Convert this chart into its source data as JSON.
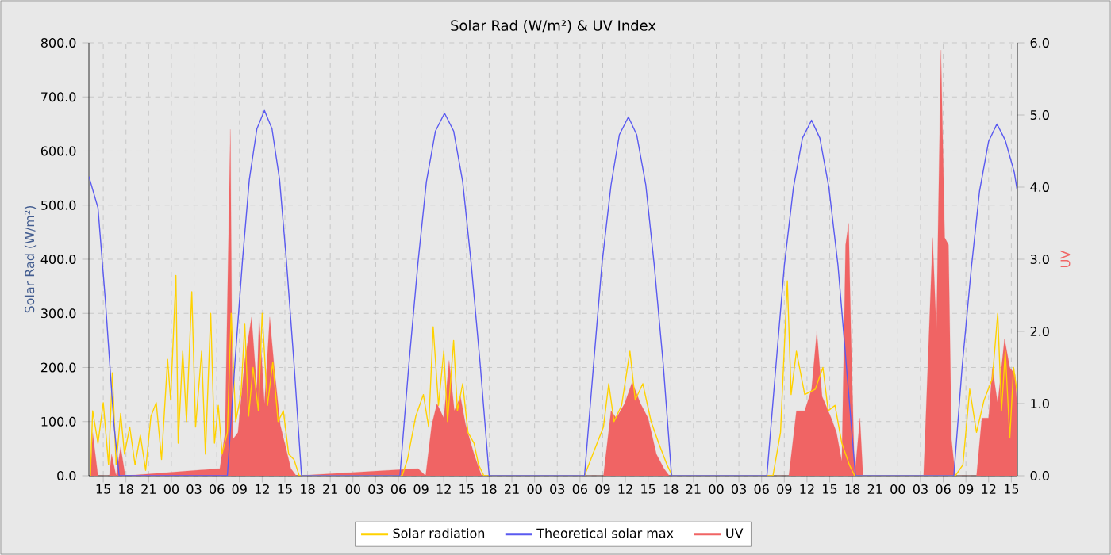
{
  "chart_data": {
    "type": "area",
    "title": "Solar Rad (W/m²) & UV Index",
    "ylabel": "Solar Rad (W/m²)",
    "y2label": "UV",
    "xlim": [
      13.1,
      135.8
    ],
    "ylim": [
      0,
      800
    ],
    "y2lim": [
      0,
      6
    ],
    "xticks": [
      {
        "value": 15,
        "label": "15"
      },
      {
        "value": 18,
        "label": "18"
      },
      {
        "value": 21,
        "label": "21"
      },
      {
        "value": 24,
        "label": "00"
      },
      {
        "value": 27,
        "label": "03"
      },
      {
        "value": 30,
        "label": "06"
      },
      {
        "value": 33,
        "label": "09"
      },
      {
        "value": 36,
        "label": "12"
      },
      {
        "value": 39,
        "label": "15"
      },
      {
        "value": 42,
        "label": "18"
      },
      {
        "value": 45,
        "label": "21"
      },
      {
        "value": 48,
        "label": "00"
      },
      {
        "value": 51,
        "label": "03"
      },
      {
        "value": 54,
        "label": "06"
      },
      {
        "value": 57,
        "label": "09"
      },
      {
        "value": 60,
        "label": "12"
      },
      {
        "value": 63,
        "label": "15"
      },
      {
        "value": 66,
        "label": "18"
      },
      {
        "value": 69,
        "label": "21"
      },
      {
        "value": 72,
        "label": "00"
      },
      {
        "value": 75,
        "label": "03"
      },
      {
        "value": 78,
        "label": "06"
      },
      {
        "value": 81,
        "label": "09"
      },
      {
        "value": 84,
        "label": "12"
      },
      {
        "value": 87,
        "label": "15"
      },
      {
        "value": 90,
        "label": "18"
      },
      {
        "value": 93,
        "label": "21"
      },
      {
        "value": 96,
        "label": "00"
      },
      {
        "value": 99,
        "label": "03"
      },
      {
        "value": 102,
        "label": "06"
      },
      {
        "value": 105,
        "label": "09"
      },
      {
        "value": 108,
        "label": "12"
      },
      {
        "value": 111,
        "label": "15"
      },
      {
        "value": 114,
        "label": "18"
      },
      {
        "value": 117,
        "label": "21"
      },
      {
        "value": 120,
        "label": "00"
      },
      {
        "value": 123,
        "label": "03"
      },
      {
        "value": 126,
        "label": "06"
      },
      {
        "value": 129,
        "label": "09"
      },
      {
        "value": 132,
        "label": "12"
      },
      {
        "value": 135,
        "label": "15"
      }
    ],
    "yticks": [
      {
        "value": 0,
        "label": "0.0"
      },
      {
        "value": 100,
        "label": "100.0"
      },
      {
        "value": 200,
        "label": "200.0"
      },
      {
        "value": 300,
        "label": "300.0"
      },
      {
        "value": 400,
        "label": "400.0"
      },
      {
        "value": 500,
        "label": "500.0"
      },
      {
        "value": 600,
        "label": "600.0"
      },
      {
        "value": 700,
        "label": "700.0"
      },
      {
        "value": 800,
        "label": "800.0"
      }
    ],
    "y2ticks": [
      {
        "value": 0,
        "label": "0.0"
      },
      {
        "value": 1,
        "label": "1.0"
      },
      {
        "value": 2,
        "label": "2.0"
      },
      {
        "value": 3,
        "label": "3.0"
      },
      {
        "value": 4,
        "label": "4.0"
      },
      {
        "value": 5,
        "label": "5.0"
      },
      {
        "value": 6,
        "label": "6.0"
      }
    ],
    "grid": true,
    "legend": "bottom",
    "series": [
      {
        "name": "Solar radiation",
        "type": "line",
        "color": "#ffd200",
        "x": [
          13.3,
          13.6,
          14.3,
          15.0,
          15.7,
          16.2,
          16.7,
          17.3,
          17.8,
          18.5,
          19.2,
          19.9,
          20.6,
          21.3,
          22.0,
          22.7,
          23.5,
          23.9,
          24.6,
          24.9,
          25.5,
          26.0,
          26.7,
          27.2,
          28.0,
          28.5,
          29.2,
          29.7,
          30.2,
          30.7,
          31.4,
          31.9,
          32.5,
          33.2,
          33.7,
          34.2,
          34.8,
          35.5,
          36.0,
          36.7,
          37.4,
          38.1,
          38.8,
          39.5,
          40.2,
          40.9,
          54.5,
          55.2,
          56.3,
          57.3,
          58.0,
          58.6,
          59.3,
          60.0,
          60.5,
          61.3,
          61.8,
          62.5,
          63.2,
          64.0,
          64.6,
          65.3,
          78.6,
          79.7,
          81.1,
          81.8,
          82.5,
          83.5,
          84.6,
          85.3,
          86.3,
          87.4,
          88.4,
          89.5,
          90.2,
          103.5,
          104.5,
          105.4,
          105.9,
          106.6,
          107.7,
          109.1,
          110.1,
          110.8,
          111.7,
          112.6,
          113.6,
          114.3,
          127.6,
          128.6,
          129.5,
          130.4,
          131.4,
          132.5,
          133.2,
          133.7,
          134.2,
          134.8,
          135.3,
          135.8
        ],
        "values": [
          0,
          120,
          60,
          135,
          20,
          190,
          20,
          115,
          40,
          90,
          20,
          75,
          10,
          110,
          135,
          30,
          215,
          140,
          370,
          60,
          230,
          100,
          340,
          90,
          230,
          40,
          300,
          60,
          130,
          40,
          80,
          300,
          100,
          150,
          280,
          110,
          200,
          120,
          300,
          130,
          210,
          100,
          120,
          40,
          30,
          0,
          0,
          30,
          110,
          150,
          90,
          275,
          130,
          230,
          100,
          250,
          120,
          170,
          80,
          60,
          20,
          0,
          0,
          40,
          90,
          170,
          100,
          130,
          230,
          140,
          170,
          100,
          60,
          20,
          0,
          0,
          80,
          360,
          150,
          230,
          150,
          160,
          200,
          120,
          130,
          60,
          20,
          0,
          0,
          20,
          160,
          80,
          140,
          180,
          300,
          120,
          230,
          70,
          200,
          150
        ]
      },
      {
        "name": "Theoretical solar max",
        "type": "line",
        "color": "#5a5af0",
        "x": [
          13.1,
          14.3,
          15.3,
          16.4,
          17.1,
          31.4,
          32.4,
          33.4,
          34.3,
          35.3,
          36.3,
          37.3,
          38.3,
          39.2,
          40.2,
          41.2,
          54.2,
          55.4,
          56.6,
          57.7,
          58.9,
          60.1,
          61.3,
          62.5,
          63.6,
          64.8,
          66.0,
          78.6,
          79.8,
          80.9,
          82.1,
          83.2,
          84.4,
          85.5,
          86.7,
          87.8,
          89.0,
          90.1,
          102.7,
          103.9,
          105.0,
          106.2,
          107.4,
          108.6,
          109.7,
          110.9,
          112.1,
          113.2,
          114.4,
          127.4,
          128.5,
          129.7,
          130.8,
          132.0,
          133.1,
          134.2,
          135.4,
          135.8
        ],
        "values": [
          553,
          495,
          320,
          97,
          0,
          0,
          209,
          398,
          547,
          641,
          675,
          641,
          547,
          398,
          209,
          0,
          0,
          208,
          395,
          543,
          637,
          670,
          637,
          543,
          395,
          208,
          0,
          0,
          206,
          391,
          537,
          630,
          663,
          630,
          537,
          391,
          206,
          0,
          0,
          204,
          388,
          532,
          624,
          657,
          624,
          532,
          388,
          204,
          0,
          0,
          201,
          382,
          526,
          618,
          650,
          620,
          560,
          525
        ]
      },
      {
        "name": "UV",
        "axis": "y2",
        "color": "#f06464",
        "x": [
          13.3,
          13.6,
          14.3,
          15.8,
          16.1,
          16.7,
          17.3,
          17.9,
          30.4,
          31.1,
          31.8,
          32.1,
          32.8,
          33.7,
          34.6,
          35.3,
          35.6,
          36.3,
          37.0,
          37.6,
          38.4,
          39.1,
          39.8,
          40.5,
          56.6,
          57.6,
          58.4,
          59.1,
          60.0,
          60.7,
          61.4,
          62.2,
          62.9,
          64.0,
          65.0,
          81.1,
          82.1,
          82.8,
          83.9,
          84.9,
          86.0,
          87.0,
          88.1,
          89.1,
          89.8,
          105.6,
          106.6,
          107.7,
          108.6,
          109.3,
          110.0,
          111.2,
          111.9,
          112.6,
          113.1,
          113.5,
          113.8,
          114.3,
          115.0,
          115.4,
          123.4,
          123.7,
          124.6,
          125.1,
          125.7,
          126.2,
          126.7,
          127.1,
          127.6,
          130.4,
          131.1,
          132.0,
          132.5,
          133.2,
          134.1,
          134.8,
          135.5,
          135.8
        ],
        "values": [
          0,
          0.6,
          0,
          0,
          0.3,
          0,
          0.4,
          0,
          0.1,
          0.6,
          4.8,
          0.5,
          0.6,
          1.6,
          2.2,
          1.2,
          2.2,
          1.0,
          2.2,
          1.5,
          0.7,
          0.4,
          0.1,
          0,
          0.1,
          0,
          0.7,
          1.0,
          0.8,
          1.6,
          0.9,
          1.1,
          0.7,
          0.3,
          0,
          0,
          0.9,
          0.8,
          1.0,
          1.3,
          1.0,
          0.8,
          0.3,
          0.1,
          0,
          0,
          0.9,
          0.9,
          1.2,
          2.0,
          1.1,
          0.8,
          0.6,
          0.2,
          3.2,
          3.5,
          2.0,
          0,
          0.8,
          0,
          0,
          0.8,
          3.3,
          2.0,
          5.9,
          3.3,
          3.2,
          0.5,
          0,
          0,
          0.8,
          0.8,
          1.5,
          1.0,
          1.9,
          1.5,
          1.4,
          0.9
        ]
      }
    ]
  }
}
